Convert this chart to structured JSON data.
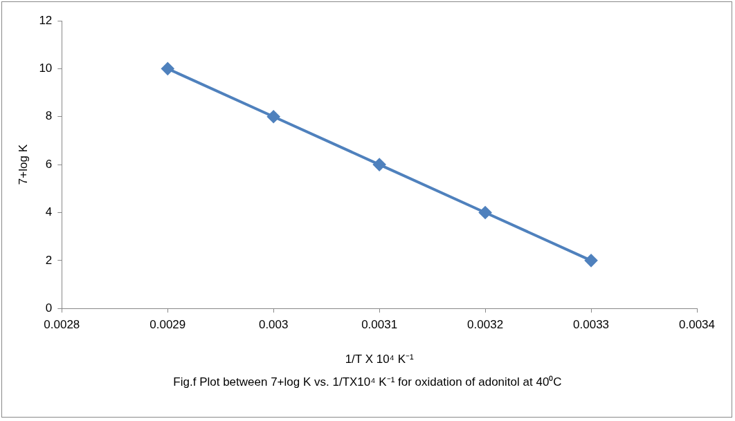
{
  "chart_data": {
    "type": "line",
    "xlabel": "1/T X 10⁴ K⁻¹",
    "ylabel": "7+log K",
    "annotations": [
      "Fig.f  Plot between 7+log K vs. 1/TX10⁴ K⁻¹ for oxidation of adonitol at 40⁰C"
    ],
    "x": [
      0.0029,
      0.003,
      0.0031,
      0.0032,
      0.0033
    ],
    "series": [
      {
        "color": "#4f81bd",
        "values": [
          10,
          8,
          6,
          4,
          2
        ]
      }
    ],
    "xlim": [
      0.0028,
      0.0034
    ],
    "xticks": [
      0.0028,
      0.0029,
      0.003,
      0.0031,
      0.0032,
      0.0033,
      0.0034
    ],
    "ylim": [
      0,
      12
    ],
    "yticks": [
      0,
      2,
      4,
      6,
      8,
      10,
      12
    ],
    "grid": false,
    "legend": false,
    "marker": "diamond",
    "line_style": "solid"
  }
}
